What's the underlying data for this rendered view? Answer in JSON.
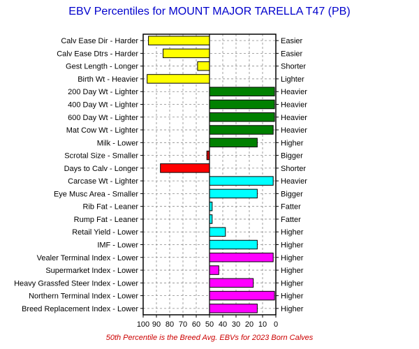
{
  "chart_data": {
    "type": "bar",
    "orientation": "horizontal",
    "title": "EBV Percentiles for MOUNT MAJOR TARELLA T47 (PB)",
    "footnote": "50th Percentile is the Breed Avg. EBVs for 2023 Born Calves",
    "xlim": [
      100,
      0
    ],
    "x_reversed": true,
    "baseline": 50,
    "xticks": [
      "100",
      "90",
      "80",
      "70",
      "60",
      "50",
      "40",
      "30",
      "20",
      "10",
      "0"
    ],
    "grid": true,
    "categories": [
      "Calv Ease Dir - Harder",
      "Calv Ease Dtrs - Harder",
      "Gest Length - Longer",
      "Birth Wt - Heavier",
      "200 Day Wt - Lighter",
      "400 Day Wt - Lighter",
      "600 Day Wt - Lighter",
      "Mat Cow Wt - Lighter",
      "Milk - Lower",
      "Scrotal Size - Smaller",
      "Days to Calv - Longer",
      "Carcase Wt - Lighter",
      "Eye Musc Area - Smaller",
      "Rib Fat - Leaner",
      "Rump Fat - Leaner",
      "Retail Yield - Lower",
      "IMF - Lower",
      "Vealer Terminal Index - Lower",
      "Supermarket Index - Lower",
      "Heavy Grassfed Steer Index - Lower",
      "Northern Terminal Index - Lower",
      "Breed Replacement Index - Lower"
    ],
    "right_labels": [
      "Easier",
      "Easier",
      "Shorter",
      "Lighter",
      "Heavier",
      "Heavier",
      "Heavier",
      "Heavier",
      "Higher",
      "Bigger",
      "Shorter",
      "Heavier",
      "Bigger",
      "Fatter",
      "Fatter",
      "Higher",
      "Higher",
      "Higher",
      "Higher",
      "Higher",
      "Higher",
      "Higher"
    ],
    "values": [
      96,
      85,
      59,
      97,
      1,
      1,
      1,
      2,
      14,
      52,
      87,
      2,
      14,
      48,
      48,
      38,
      14,
      2,
      43,
      17,
      1,
      14
    ],
    "colors": [
      "#ffff00",
      "#ffff00",
      "#ffff00",
      "#ffff00",
      "#008000",
      "#008000",
      "#008000",
      "#008000",
      "#008000",
      "#cc0000",
      "#ff0000",
      "#00ffff",
      "#00ffff",
      "#00ffff",
      "#00ffff",
      "#00ffff",
      "#00ffff",
      "#ff00ff",
      "#ff00ff",
      "#ff00ff",
      "#ff00ff",
      "#ff00ff"
    ],
    "title_color": "#0000cc",
    "footnote_color": "#cc0000"
  }
}
